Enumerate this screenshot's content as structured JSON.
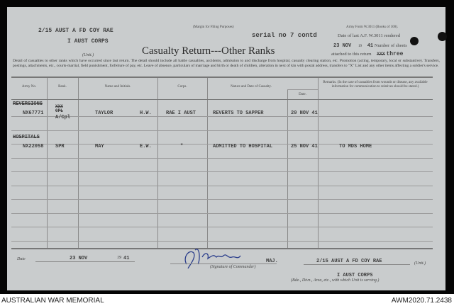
{
  "header": {
    "unit_typed_1": "2/15 AUST A FD COY RAE",
    "unit_typed_2": "I AUST CORPS",
    "unit_label": "(Unit.)",
    "margin_note": "(Margin for Filing Purposes)",
    "form_ref": "Army Form W.3011 (Books of 100).",
    "serial_typed": "serial no 7 contd",
    "date_last_label": "Date of last A.F. W.3011 rendered",
    "date_last_value": "23 NOV",
    "year_prefix": "19",
    "year_suffix": "41",
    "number_of_sheets_label": "Number of sheets",
    "attached_label": "attached to this return",
    "sheets_struck": "XXX",
    "sheets_value": "three",
    "title": "Casualty Return---Other Ranks",
    "detail": "Detail of casualties to other ranks which have occurred since last return. The detail should include all battle casualties, accidents, admission to and discharge from hospital, casualty clearing station, etc. Promotion (acting, temporary, local or substantive). Transfers, postings, attachments, etc., courts-martial, field punishment, forfeiture of pay, etc. Leave of absence, particulars of marriage and birth or death of children, alteration in next of kin with postal address, transfers to \"X\" List and any other items affecting a soldier's service."
  },
  "table": {
    "columns": [
      "Army No.",
      "Rank.",
      "Name and Initials.",
      "Corps.",
      "Nature and Date of Casualty.",
      "Date.",
      "Remarks. (In the case of casualties from wounds or disease, any available information for communication to relatives should be stated.)"
    ],
    "sections": [
      {
        "heading": "REVERSIONS",
        "army_no": "NX67771",
        "rank_struck": "XXX CPL",
        "rank": "A/Cpl",
        "name": "TAYLOR",
        "initials": "H.W.",
        "corps": "RAE I AUST",
        "nature": "REVERTS TO SAPPER",
        "date": "20 NOV 41",
        "remarks": ""
      },
      {
        "heading": "HOSPITALS",
        "army_no": "NX22058",
        "rank_struck": "",
        "rank": "SPR",
        "name": "MAY",
        "initials": "E.W.",
        "corps": "\"",
        "nature": "ADMITTED TO HOSPITAL",
        "date": "25 NOV 41",
        "remarks": "TO MDS HOME"
      }
    ]
  },
  "footer_form": {
    "date_label": "Date",
    "date_value": "23 NOV",
    "year_prefix": "19",
    "year_suffix": "41",
    "signature_label": "(Signature of Commander)",
    "signature_rank": "MAJ.",
    "signature": "O.J. Rayer",
    "unit_value": "2/15 AUST A FD COY RAE",
    "unit_label": "(Unit.)",
    "formation_value": "I AUST CORPS",
    "formation_label": "(Bde., Divn., Area, etc., with which Unit is serving.)"
  },
  "caption": {
    "left": "AUSTRALIAN WAR MEMORIAL",
    "right": "AWM2020.71.2438"
  }
}
